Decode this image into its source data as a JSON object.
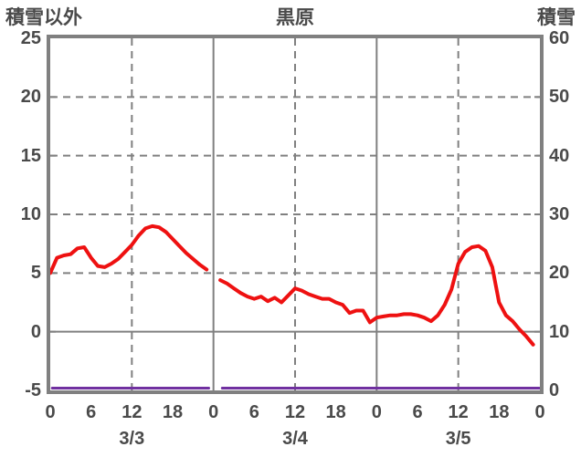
{
  "header": {
    "left_axis_label": "積雪以外",
    "title": "黒原",
    "right_axis_label": "積雪"
  },
  "colors": {
    "axis_gray": "#808080",
    "text_gray": "#4a4a4a",
    "series_red": "#ee1111",
    "series_purple": "#7030a0",
    "background": "#ffffff"
  },
  "chart_data": {
    "type": "line",
    "title": "黒原",
    "hours_total": 72,
    "left_axis": {
      "label": "積雪以外",
      "min": -5,
      "max": 25,
      "ticks": [
        25,
        20,
        15,
        10,
        5,
        0,
        -5
      ]
    },
    "right_axis": {
      "label": "積雪",
      "min": 0,
      "max": 60,
      "ticks": [
        60,
        50,
        40,
        30,
        20,
        10,
        0
      ]
    },
    "x_axis": {
      "tick_hours": [
        0,
        6,
        12,
        18,
        24,
        30,
        36,
        42,
        48,
        54,
        60,
        66,
        72
      ],
      "tick_labels": [
        "0",
        "6",
        "12",
        "18",
        "0",
        "6",
        "12",
        "18",
        "0",
        "6",
        "12",
        "18",
        "0"
      ],
      "date_labels": [
        {
          "label": "3/3",
          "hour": 12
        },
        {
          "label": "3/4",
          "hour": 36
        },
        {
          "label": "3/5",
          "hour": 60
        }
      ]
    },
    "gridlines": {
      "dashed_horizontal_values": [
        20,
        15,
        10,
        5
      ],
      "solid_horizontal_values": [
        0
      ],
      "dashed_vertical_hours": [
        12,
        36,
        60
      ],
      "solid_vertical_hours": [
        24,
        48
      ],
      "left_inner_tick_values": [
        20,
        15,
        10,
        5,
        0
      ],
      "right_inner_tick_values": [
        50,
        40,
        30,
        20,
        10
      ]
    },
    "series": [
      {
        "name": "積雪以外",
        "axis": "left",
        "color": "#ee1111",
        "width": 4,
        "segments": [
          {
            "start_hour": 0,
            "values": [
              5.0,
              6.3,
              6.5,
              6.6,
              7.1,
              7.2,
              6.3,
              5.6,
              5.5,
              5.8,
              6.2,
              6.8,
              7.4,
              8.2,
              8.8,
              9.0,
              8.9,
              8.5,
              7.9,
              7.3,
              6.7,
              6.2,
              5.7,
              5.3
            ]
          },
          {
            "start_hour": 25,
            "values": [
              4.4,
              4.1,
              3.7,
              3.3,
              3.0,
              2.8,
              3.0,
              2.6,
              2.9,
              2.5,
              3.1,
              3.7,
              3.5,
              3.2,
              3.0,
              2.8,
              2.8,
              2.5,
              2.3,
              1.6,
              1.8,
              1.8,
              0.8,
              1.2,
              1.3,
              1.4,
              1.4,
              1.5,
              1.5,
              1.4,
              1.2,
              0.9,
              1.4,
              2.3,
              3.6,
              5.8,
              6.8,
              7.2,
              7.3,
              6.9,
              5.5,
              2.5,
              1.4,
              0.9,
              0.2,
              -0.4,
              -1.1
            ]
          }
        ]
      },
      {
        "name": "積雪",
        "axis": "right",
        "color": "#7030a0",
        "width": 3,
        "segments": [
          {
            "start_hour": 0.3,
            "end_hour": 23.3,
            "value": 0
          },
          {
            "start_hour": 25.3,
            "end_hour": 71.9,
            "value": 0
          }
        ]
      }
    ]
  }
}
